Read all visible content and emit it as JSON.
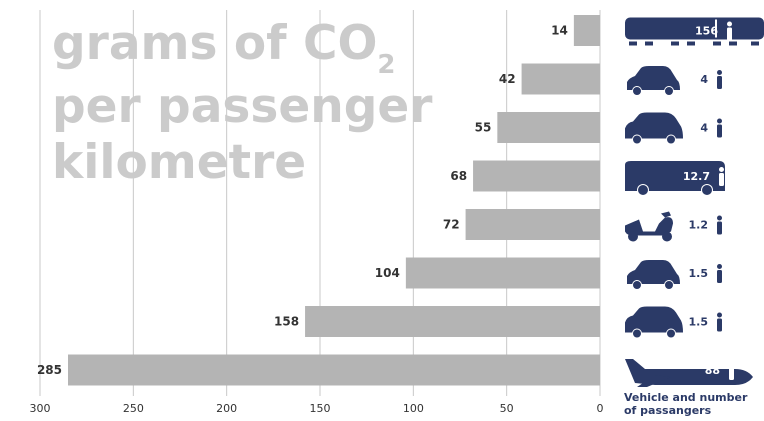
{
  "title": {
    "line1_pre": "grams of CO",
    "line1_sub": "2",
    "line2": "per passenger",
    "line3": "kilometre"
  },
  "vehicle_label": {
    "line1": "Vehicle and number",
    "line2": "of passangers"
  },
  "colors": {
    "bar": "#b4b4b4",
    "icon": "#2b3a67",
    "gridline": "#c8c8c8",
    "title": "#cbcbcb"
  },
  "chart_data": {
    "type": "bar",
    "orientation": "horizontal",
    "x_axis": "reversed",
    "xlim": [
      0,
      300
    ],
    "xticks": [
      300,
      250,
      200,
      150,
      100,
      50,
      0
    ],
    "grid": true,
    "title": "grams of CO2 per passenger kilometre",
    "values": [
      14,
      42,
      55,
      68,
      72,
      104,
      158,
      285
    ],
    "vehicles": [
      {
        "icon": "train-icon",
        "passengers": "156"
      },
      {
        "icon": "small-car-icon",
        "passengers": "4"
      },
      {
        "icon": "car-icon",
        "passengers": "4"
      },
      {
        "icon": "bus-icon",
        "passengers": "12.7"
      },
      {
        "icon": "scooter-icon",
        "passengers": "1.2"
      },
      {
        "icon": "small-car-icon",
        "passengers": "1.5"
      },
      {
        "icon": "car-icon",
        "passengers": "1.5"
      },
      {
        "icon": "plane-icon",
        "passengers": "88"
      }
    ]
  }
}
